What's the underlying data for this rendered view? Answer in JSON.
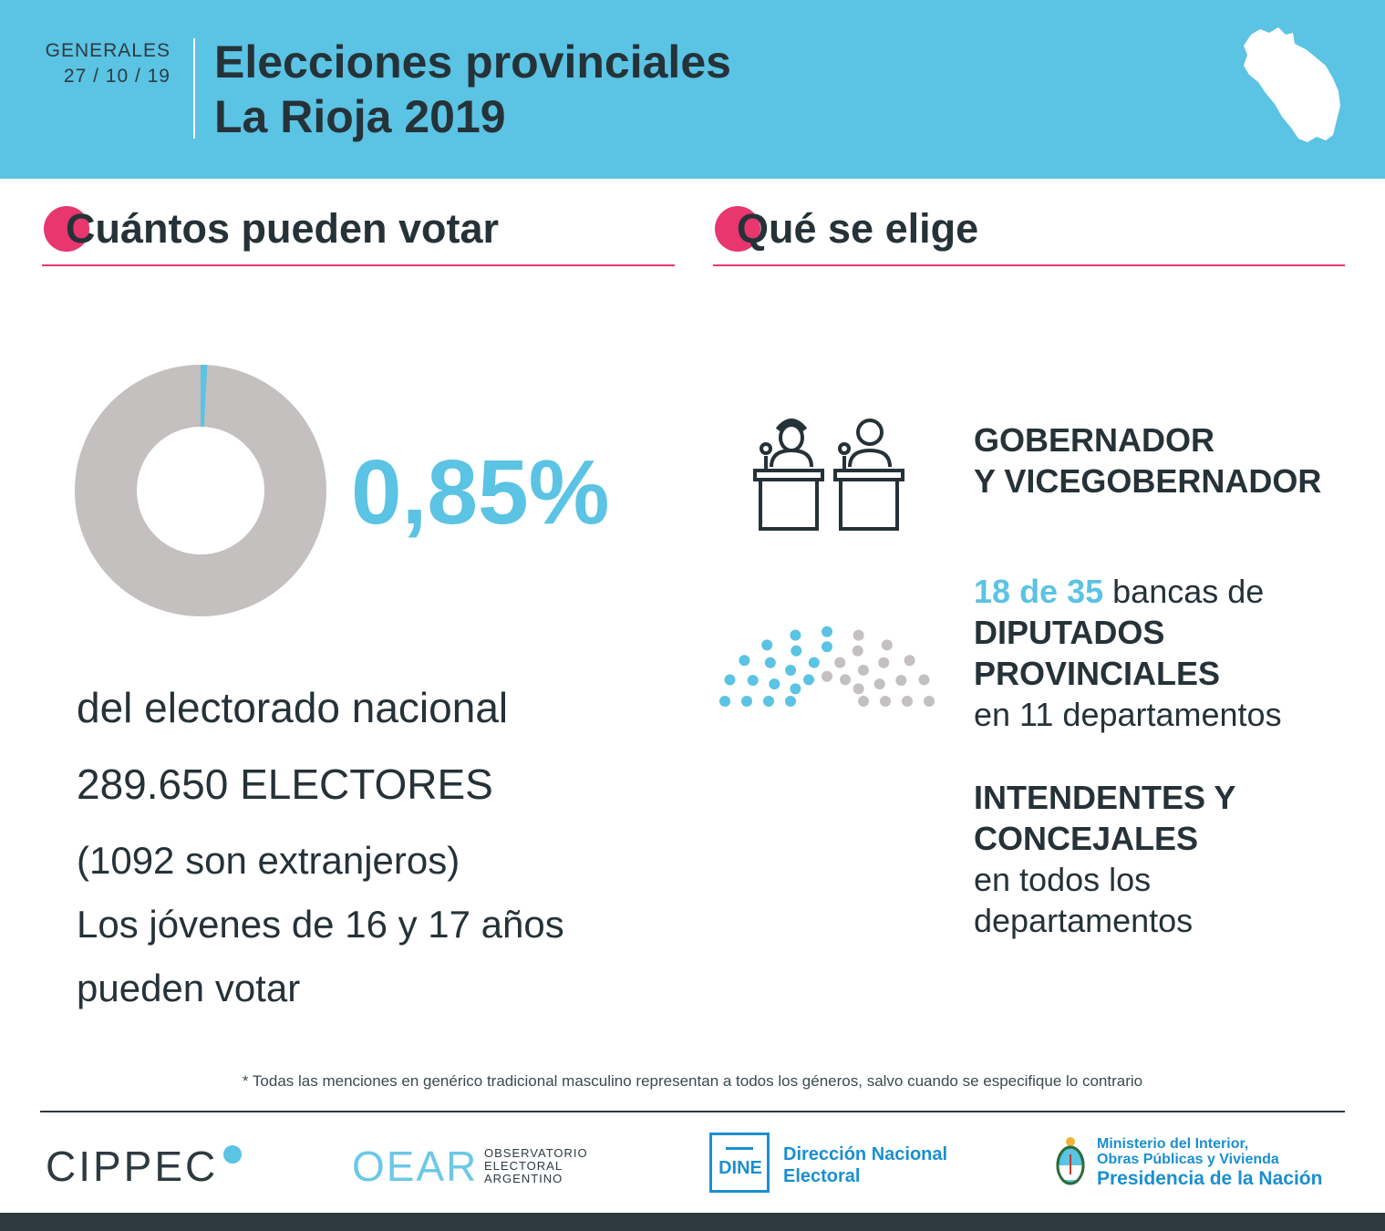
{
  "header": {
    "event_label": "GENERALES",
    "event_date": "27 / 10 / 19",
    "title_line1": "Elecciones provinciales",
    "title_line2": "La Rioja 2019"
  },
  "left": {
    "heading": "Cuántos pueden votar",
    "percent_text": "0,85%",
    "percent_value": 0.85,
    "line1": "del electorado nacional",
    "electors_number": "289.650",
    "electors_label": "ELECTORES",
    "foreigners": "(1092 son extranjeros)",
    "youth_line1": "Los jóvenes de 16 y 17 años",
    "youth_line2": "pueden votar"
  },
  "right": {
    "heading": "Qué se elige",
    "gov_line1": "GOBERNADOR",
    "gov_line2": "Y VICEGOBERNADOR",
    "seats_elected": "18",
    "seats_de": "de",
    "seats_total": "35",
    "seats_suffix": "bancas de",
    "dip_line1": "DIPUTADOS",
    "dip_line2": "PROVINCIALES",
    "dip_line3": "en 11 departamentos",
    "int_line1": "INTENDENTES Y",
    "int_line2": "CONCEJALES",
    "int_line3": "en todos los",
    "int_line4": "departamentos"
  },
  "footer": {
    "note": "* Todas las menciones en genérico tradicional masculino representan a todos los géneros, salvo cuando se especifique lo contrario",
    "cippec": "CIPPEC",
    "oear": "OEAR",
    "oear_sub1": "OBSERVATORIO",
    "oear_sub2": "ELECTORAL",
    "oear_sub3": "ARGENTINO",
    "dine": "DINE",
    "dine_name1": "Dirección Nacional",
    "dine_name2": "Electoral",
    "min1": "Ministerio del Interior,",
    "min2": "Obras Públicas y Vivienda",
    "min3": "Presidencia de la Nación"
  },
  "colors": {
    "accent_blue": "#5bc3e3",
    "accent_pink": "#e8366f",
    "gray": "#c4c0c0",
    "dark": "#253238"
  }
}
